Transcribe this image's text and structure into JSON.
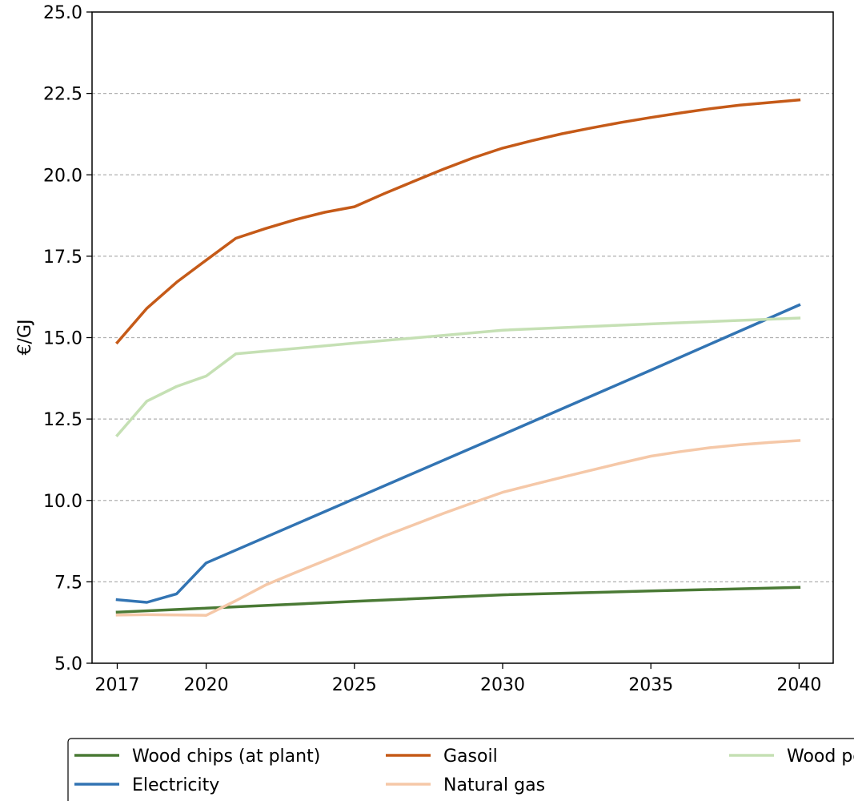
{
  "chart_data": {
    "type": "line",
    "title": "",
    "xlabel": "",
    "ylabel": "€/GJ",
    "xlim": [
      2016.15,
      2041.15
    ],
    "ylim": [
      5.0,
      25.0
    ],
    "xticks": [
      2017,
      2020,
      2025,
      2030,
      2035,
      2040
    ],
    "xtick_labels": [
      "2017",
      "2020",
      "2025",
      "2030",
      "2035",
      "2040"
    ],
    "yticks": [
      5.0,
      7.5,
      10.0,
      12.5,
      15.0,
      17.5,
      20.0,
      22.5,
      25.0
    ],
    "ytick_labels": [
      "5.0",
      "7.5",
      "10.0",
      "12.5",
      "15.0",
      "17.5",
      "20.0",
      "22.5",
      "25.0"
    ],
    "grid": "horizontal dashed",
    "legend_position": "bottom",
    "series": [
      {
        "name": "Wood chips (at plant)",
        "color": "#4a7a35",
        "x": [
          2017,
          2020,
          2025,
          2030,
          2035,
          2040
        ],
        "y": [
          6.57,
          6.69,
          6.9,
          7.1,
          7.22,
          7.33
        ]
      },
      {
        "name": "Electricity",
        "color": "#3274b3",
        "x": [
          2017,
          2018,
          2019,
          2020,
          2025,
          2030,
          2035,
          2040
        ],
        "y": [
          6.95,
          6.87,
          7.13,
          8.08,
          10.05,
          12.02,
          14.0,
          16.0
        ]
      },
      {
        "name": "Gasoil",
        "color": "#c55a18",
        "x": [
          2017,
          2018,
          2019,
          2020,
          2021,
          2022,
          2023,
          2024,
          2025,
          2026,
          2027,
          2028,
          2029,
          2030,
          2031,
          2032,
          2033,
          2034,
          2035,
          2036,
          2037,
          2038,
          2039,
          2040
        ],
        "y": [
          14.85,
          15.9,
          16.7,
          17.38,
          18.05,
          18.35,
          18.62,
          18.85,
          19.02,
          19.42,
          19.8,
          20.17,
          20.52,
          20.82,
          21.05,
          21.26,
          21.44,
          21.61,
          21.76,
          21.9,
          22.03,
          22.14,
          22.22,
          22.3
        ]
      },
      {
        "name": "Natural gas",
        "color": "#f5c8a8",
        "x": [
          2017,
          2018,
          2019,
          2020,
          2021,
          2022,
          2023,
          2024,
          2025,
          2026,
          2027,
          2028,
          2029,
          2030,
          2031,
          2032,
          2033,
          2034,
          2035,
          2036,
          2037,
          2038,
          2039,
          2040
        ],
        "y": [
          6.48,
          6.49,
          6.48,
          6.47,
          6.92,
          7.4,
          7.78,
          8.15,
          8.52,
          8.9,
          9.25,
          9.6,
          9.93,
          10.25,
          10.48,
          10.71,
          10.93,
          11.15,
          11.36,
          11.5,
          11.62,
          11.71,
          11.78,
          11.84
        ]
      },
      {
        "name": "Wood pellets (consumer)",
        "color": "#c5e0b4",
        "x": [
          2017,
          2018,
          2019,
          2020,
          2021,
          2025,
          2030,
          2035,
          2040
        ],
        "y": [
          12.0,
          13.05,
          13.5,
          13.82,
          14.5,
          14.83,
          15.23,
          15.42,
          15.6
        ]
      }
    ]
  }
}
